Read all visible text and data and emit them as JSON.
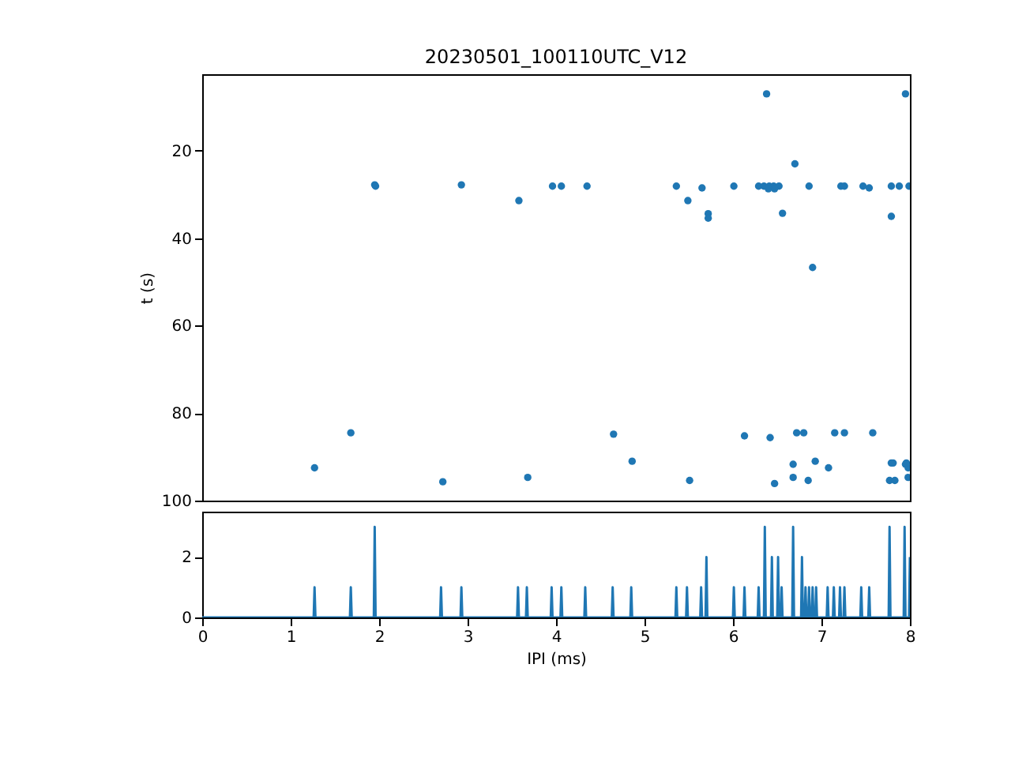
{
  "chart_data": [
    {
      "type": "scatter",
      "title": "20230501_100110UTC_V12",
      "ylabel": "t (s)",
      "xlim": [
        0,
        8
      ],
      "ylim": [
        100,
        2.5
      ],
      "yticks": [
        20,
        40,
        60,
        80,
        100
      ],
      "tick_labels": "y",
      "marker": "circle",
      "grid": false,
      "series": [
        {
          "color": "#1f77b4",
          "x": [
            1.95,
            1.96,
            2.93,
            3.58,
            3.96,
            4.06,
            1.27,
            1.68,
            2.72,
            3.68,
            6.38,
            7.95,
            6.7,
            4.35,
            5.36,
            5.49,
            5.65,
            5.72,
            5.72,
            6.01,
            6.29,
            6.35,
            6.41,
            6.46,
            6.52,
            6.4,
            6.47,
            6.56,
            6.86,
            6.9,
            7.22,
            7.26,
            7.47,
            7.54,
            7.79,
            7.88,
            7.99,
            7.79,
            4.65,
            4.86,
            5.51,
            6.13,
            6.42,
            6.47,
            6.68,
            6.68,
            6.72,
            6.8,
            6.85,
            6.93,
            7.08,
            7.15,
            7.26,
            7.58,
            7.79,
            7.81,
            7.77,
            7.83,
            7.95,
            7.98,
            7.98,
            7.96
          ],
          "values": [
            27.8,
            28.1,
            27.8,
            31.4,
            28.1,
            28.1,
            92.5,
            84.5,
            95.7,
            94.7,
            7.0,
            7.0,
            23.0,
            28.1,
            28.1,
            31.4,
            28.5,
            34.4,
            35.4,
            28.1,
            28.1,
            28.1,
            28.1,
            28.1,
            28.1,
            28.7,
            28.7,
            34.3,
            28.1,
            46.7,
            28.1,
            28.1,
            28.1,
            28.5,
            28.1,
            28.1,
            28.1,
            35.0,
            84.8,
            91.0,
            95.4,
            85.2,
            85.6,
            96.1,
            91.7,
            94.7,
            84.5,
            84.5,
            95.4,
            91.0,
            92.5,
            84.5,
            84.5,
            84.5,
            91.4,
            91.4,
            95.4,
            95.4,
            91.7,
            92.5,
            94.7,
            91.4
          ]
        }
      ]
    },
    {
      "type": "line",
      "xlabel": "IPI (ms)",
      "xlim": [
        0,
        8
      ],
      "xticks": [
        0,
        1,
        2,
        3,
        4,
        5,
        6,
        7,
        8
      ],
      "ylim": [
        0,
        3.5
      ],
      "yticks": [
        0,
        2
      ],
      "marker": "none",
      "line_style": "solid",
      "grid": false,
      "series": [
        {
          "color": "#1f77b4",
          "x": [
            0,
            1.26,
            1.27,
            1.28,
            1.67,
            1.68,
            1.69,
            1.94,
            1.95,
            1.96,
            2.69,
            2.7,
            2.71,
            2.92,
            2.93,
            2.94,
            3.56,
            3.57,
            3.58,
            3.66,
            3.67,
            3.68,
            3.94,
            3.95,
            3.96,
            4.05,
            4.06,
            4.07,
            4.32,
            4.33,
            4.34,
            4.63,
            4.64,
            4.65,
            4.84,
            4.85,
            4.86,
            5.35,
            5.36,
            5.37,
            5.47,
            5.48,
            5.49,
            5.63,
            5.64,
            5.65,
            5.69,
            5.7,
            5.71,
            6.0,
            6.01,
            6.02,
            6.12,
            6.13,
            6.14,
            6.28,
            6.29,
            6.3,
            6.35,
            6.36,
            6.37,
            6.43,
            6.44,
            6.45,
            6.5,
            6.51,
            6.52,
            6.54,
            6.55,
            6.56,
            6.67,
            6.68,
            6.69,
            6.77,
            6.78,
            6.79,
            6.81,
            6.82,
            6.83,
            6.85,
            6.86,
            6.87,
            6.89,
            6.9,
            6.91,
            6.93,
            6.94,
            6.95,
            7.06,
            7.07,
            7.08,
            7.13,
            7.14,
            7.15,
            7.2,
            7.21,
            7.22,
            7.25,
            7.26,
            7.27,
            7.44,
            7.45,
            7.46,
            7.53,
            7.54,
            7.55,
            7.76,
            7.77,
            7.78,
            7.93,
            7.94,
            7.95,
            7.99,
            8.0
          ],
          "values": [
            0,
            0,
            1,
            0,
            0,
            1,
            0,
            0,
            3,
            0,
            0,
            1,
            0,
            0,
            1,
            0,
            0,
            1,
            0,
            0,
            1,
            0,
            0,
            1,
            0,
            0,
            1,
            0,
            0,
            1,
            0,
            0,
            1,
            0,
            0,
            1,
            0,
            0,
            1,
            0,
            0,
            1,
            0,
            0,
            1,
            0,
            0,
            2,
            0,
            0,
            1,
            0,
            0,
            1,
            0,
            0,
            1,
            0,
            0,
            3,
            0,
            0,
            2,
            0,
            0,
            2,
            0,
            0,
            1,
            0,
            0,
            3,
            0,
            0,
            2,
            0,
            0,
            1,
            0,
            0,
            1,
            0,
            0,
            1,
            0,
            0,
            1,
            0,
            0,
            1,
            0,
            0,
            1,
            0,
            0,
            1,
            0,
            0,
            1,
            0,
            0,
            1,
            0,
            0,
            1,
            0,
            0,
            3,
            0,
            0,
            3,
            0,
            0,
            2
          ]
        }
      ]
    }
  ]
}
